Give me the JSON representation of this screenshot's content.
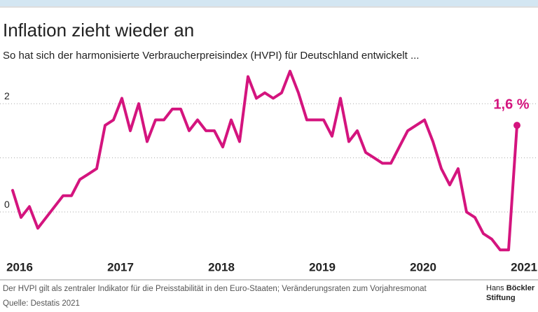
{
  "chart_data": {
    "type": "line",
    "title": "Inflation zieht wieder an",
    "subtitle": "So hat sich der harmonisierte Verbraucherpreisindex (HVPI) für Deutschland entwickelt ...",
    "footnote": "Der HVPI gilt als zentraler Indikator für die Preisstabilität in den Euro-Staaten; Veränderungsraten zum Vorjahresmonat",
    "source": "Quelle: Destatis 2021",
    "logo": [
      "Hans",
      "Böckler",
      "Stiftung"
    ],
    "categories": [
      "2016",
      null,
      null,
      null,
      null,
      null,
      null,
      null,
      null,
      null,
      null,
      null,
      "2017",
      null,
      null,
      null,
      null,
      null,
      null,
      null,
      null,
      null,
      null,
      null,
      "2018",
      null,
      null,
      null,
      null,
      null,
      null,
      null,
      null,
      null,
      null,
      null,
      "2019",
      null,
      null,
      null,
      null,
      null,
      null,
      null,
      null,
      null,
      null,
      null,
      "2020",
      null,
      null,
      null,
      null,
      null,
      null,
      null,
      null,
      null,
      null,
      null,
      "2021"
    ],
    "values": [
      0.4,
      -0.1,
      0.1,
      -0.3,
      -0.1,
      0.1,
      0.3,
      0.3,
      0.6,
      0.7,
      0.8,
      1.6,
      1.7,
      2.1,
      1.5,
      2.0,
      1.3,
      1.7,
      1.7,
      1.9,
      1.9,
      1.5,
      1.7,
      1.5,
      1.5,
      1.2,
      1.7,
      1.3,
      2.5,
      2.1,
      2.2,
      2.1,
      2.2,
      2.6,
      2.2,
      1.7,
      1.7,
      1.7,
      1.4,
      2.1,
      1.3,
      1.5,
      1.1,
      1.0,
      0.9,
      0.9,
      1.2,
      1.5,
      1.6,
      1.7,
      1.3,
      0.8,
      0.5,
      0.8,
      0.0,
      -0.1,
      -0.4,
      -0.5,
      -0.7,
      -0.7,
      1.6
    ],
    "value_labels": [
      null,
      null,
      null,
      null,
      null,
      null,
      null,
      null,
      null,
      null,
      null,
      null,
      null,
      null,
      null,
      null,
      null,
      null,
      null,
      null,
      null,
      null,
      null,
      null,
      null,
      null,
      null,
      null,
      null,
      null,
      null,
      null,
      null,
      null,
      null,
      null,
      null,
      null,
      null,
      null,
      null,
      null,
      null,
      null,
      null,
      null,
      null,
      null,
      null,
      null,
      null,
      null,
      null,
      null,
      null,
      null,
      null,
      null,
      null,
      null,
      "1,6 %"
    ],
    "color": "#d4147e",
    "ylim": [
      -0.8,
      2.7
    ],
    "yticks": [
      0,
      2
    ],
    "gridlines": [
      0,
      1,
      2
    ],
    "grid": true
  }
}
